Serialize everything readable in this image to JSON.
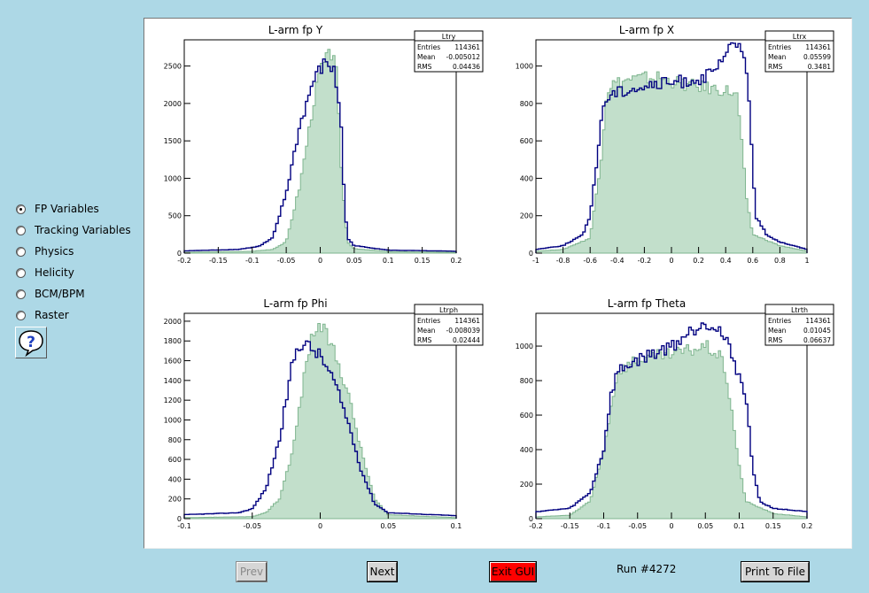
{
  "sidebar": {
    "items": [
      {
        "label": "FP Variables",
        "selected": true
      },
      {
        "label": "Tracking Variables",
        "selected": false
      },
      {
        "label": "Physics",
        "selected": false
      },
      {
        "label": "Helicity",
        "selected": false
      },
      {
        "label": "BCM/BPM",
        "selected": false
      },
      {
        "label": "Raster",
        "selected": false
      }
    ],
    "help_icon": "question-mark-bubble-icon"
  },
  "footer": {
    "prev_label": "Prev",
    "next_label": "Next",
    "exit_label": "Exit GUI",
    "run_text": "Run #4272",
    "print_label": "Print To File"
  },
  "colors": {
    "hist_fill": "#8fc4a0",
    "hist_ref_line": "#7fb58f",
    "hist_line": "#000080",
    "exit_bg": "#ff0000"
  },
  "chart_data": [
    {
      "type": "histogram",
      "title": "L-arm fp Y",
      "stats": {
        "name": "Ltry",
        "Entries": "114361",
        "Mean": "-0.005012",
        "RMS": "0.04436"
      },
      "xlim": [
        -0.2,
        0.2
      ],
      "ylim": [
        0,
        2850
      ],
      "xticks": [
        "-0.2",
        "-0.15",
        "-0.1",
        "-0.05",
        "0",
        "0.05",
        "0.1",
        "0.15",
        "0.2"
      ],
      "xtick_values": [
        -0.2,
        -0.15,
        -0.1,
        -0.05,
        0,
        0.05,
        0.1,
        0.15,
        0.2
      ],
      "yticks": [
        "0",
        "500",
        "1000",
        "1500",
        "2000",
        "2500"
      ],
      "ytick_values": [
        0,
        500,
        1000,
        1500,
        2000,
        2500
      ],
      "series": [
        {
          "role": "line",
          "x": [
            -0.2,
            -0.12,
            -0.09,
            -0.07,
            -0.05,
            -0.03,
            -0.01,
            0.0,
            0.01,
            0.02,
            0.03,
            0.035,
            0.04,
            0.05,
            0.1,
            0.2
          ],
          "y": [
            30,
            50,
            90,
            200,
            800,
            1700,
            2300,
            2450,
            2560,
            2420,
            1900,
            800,
            200,
            100,
            40,
            25
          ]
        },
        {
          "role": "fill",
          "x": [
            -0.2,
            -0.1,
            -0.07,
            -0.05,
            -0.03,
            -0.01,
            0.0,
            0.01,
            0.02,
            0.025,
            0.03,
            0.04,
            0.05,
            0.1,
            0.2
          ],
          "y": [
            10,
            25,
            50,
            150,
            900,
            2000,
            2450,
            2600,
            2700,
            2300,
            1200,
            150,
            60,
            20,
            10
          ]
        }
      ]
    },
    {
      "type": "histogram",
      "title": "L-arm fp X",
      "stats": {
        "name": "Ltrx",
        "Entries": "114361",
        "Mean": "0.05599",
        "RMS": "0.3481"
      },
      "xlim": [
        -1,
        1
      ],
      "ylim": [
        0,
        1140
      ],
      "xticks": [
        "-1",
        "-0.8",
        "-0.6",
        "-0.4",
        "-0.2",
        "0",
        "0.2",
        "0.4",
        "0.6",
        "0.8",
        "1"
      ],
      "xtick_values": [
        -1,
        -0.8,
        -0.6,
        -0.4,
        -0.2,
        0,
        0.2,
        0.4,
        0.6,
        0.8,
        1
      ],
      "yticks": [
        "0",
        "200",
        "400",
        "600",
        "800",
        "1000"
      ],
      "ytick_values": [
        0,
        200,
        400,
        600,
        800,
        1000
      ],
      "series": [
        {
          "role": "line",
          "x": [
            -1,
            -0.8,
            -0.65,
            -0.6,
            -0.55,
            -0.5,
            -0.45,
            -0.3,
            -0.1,
            0.1,
            0.3,
            0.45,
            0.5,
            0.55,
            0.58,
            0.62,
            0.7,
            0.8,
            1
          ],
          "y": [
            20,
            40,
            100,
            200,
            500,
            800,
            850,
            880,
            900,
            920,
            950,
            1100,
            1120,
            1050,
            700,
            200,
            100,
            60,
            20
          ]
        },
        {
          "role": "fill",
          "x": [
            -1,
            -0.8,
            -0.6,
            -0.52,
            -0.48,
            -0.45,
            -0.3,
            -0.1,
            0.1,
            0.3,
            0.4,
            0.48,
            0.52,
            0.55,
            0.6,
            0.8,
            1
          ],
          "y": [
            10,
            20,
            80,
            500,
            850,
            900,
            930,
            940,
            900,
            880,
            870,
            850,
            600,
            300,
            100,
            40,
            10
          ]
        }
      ]
    },
    {
      "type": "histogram",
      "title": "L-arm fp Phi",
      "stats": {
        "name": "Ltrph",
        "Entries": "114361",
        "Mean": "-0.008039",
        "RMS": "0.02444"
      },
      "xlim": [
        -0.1,
        0.1
      ],
      "ylim": [
        0,
        2080
      ],
      "xticks": [
        "-0.1",
        "-0.05",
        "0",
        "0.05",
        "0.1"
      ],
      "xtick_values": [
        -0.1,
        -0.05,
        0,
        0.05,
        0.1
      ],
      "yticks": [
        "0",
        "200",
        "400",
        "600",
        "800",
        "1000",
        "1200",
        "1400",
        "1600",
        "1800",
        "2000"
      ],
      "ytick_values": [
        0,
        200,
        400,
        600,
        800,
        1000,
        1200,
        1400,
        1600,
        1800,
        2000
      ],
      "series": [
        {
          "role": "line",
          "x": [
            -0.1,
            -0.06,
            -0.05,
            -0.04,
            -0.03,
            -0.02,
            -0.015,
            -0.01,
            0.0,
            0.01,
            0.02,
            0.03,
            0.04,
            0.05,
            0.1
          ],
          "y": [
            40,
            60,
            100,
            300,
            800,
            1600,
            1780,
            1760,
            1650,
            1400,
            1000,
            500,
            150,
            60,
            30
          ]
        },
        {
          "role": "fill",
          "x": [
            -0.1,
            -0.05,
            -0.04,
            -0.03,
            -0.02,
            -0.01,
            -0.005,
            0.0,
            0.005,
            0.01,
            0.02,
            0.03,
            0.04,
            0.05,
            0.1
          ],
          "y": [
            10,
            20,
            60,
            200,
            700,
            1600,
            1900,
            1950,
            1850,
            1700,
            1300,
            700,
            200,
            40,
            10
          ]
        }
      ]
    },
    {
      "type": "histogram",
      "title": "L-arm fp Theta",
      "stats": {
        "name": "Ltrth",
        "Entries": "114361",
        "Mean": "0.01045",
        "RMS": "0.06637"
      },
      "xlim": [
        -0.2,
        0.2
      ],
      "ylim": [
        0,
        1190
      ],
      "xticks": [
        "-0.2",
        "-0.15",
        "-0.1",
        "-0.05",
        "0",
        "0.05",
        "0.1",
        "0.15",
        "0.2"
      ],
      "xtick_values": [
        -0.2,
        -0.15,
        -0.1,
        -0.05,
        0,
        0.05,
        0.1,
        0.15,
        0.2
      ],
      "yticks": [
        "0",
        "200",
        "400",
        "600",
        "800",
        "1000"
      ],
      "ytick_values": [
        0,
        200,
        400,
        600,
        800,
        1000
      ],
      "series": [
        {
          "role": "line",
          "x": [
            -0.2,
            -0.15,
            -0.12,
            -0.1,
            -0.09,
            -0.08,
            -0.05,
            0.0,
            0.05,
            0.07,
            0.09,
            0.11,
            0.12,
            0.13,
            0.15,
            0.2
          ],
          "y": [
            40,
            60,
            150,
            400,
            700,
            850,
            920,
            1000,
            1150,
            1100,
            950,
            700,
            300,
            100,
            60,
            40
          ]
        },
        {
          "role": "fill",
          "x": [
            -0.2,
            -0.15,
            -0.12,
            -0.1,
            -0.08,
            -0.05,
            0.0,
            0.05,
            0.07,
            0.08,
            0.09,
            0.1,
            0.11,
            0.15,
            0.2
          ],
          "y": [
            10,
            20,
            100,
            400,
            850,
            930,
            950,
            1000,
            950,
            850,
            600,
            300,
            100,
            30,
            10
          ]
        }
      ]
    }
  ]
}
